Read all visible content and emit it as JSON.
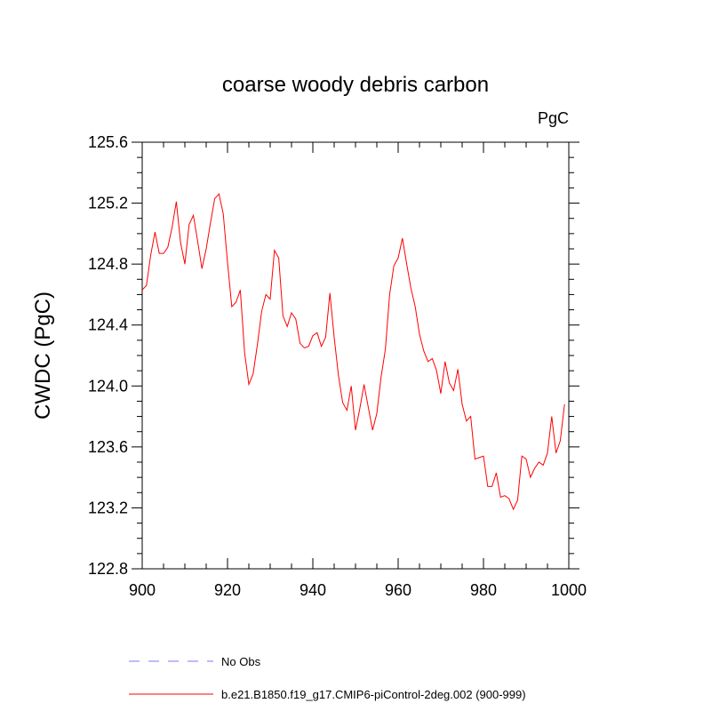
{
  "chart_data": {
    "type": "line",
    "title": "coarse woody debris carbon",
    "units": "PgC",
    "ylabel": "CWDC  (PgC)",
    "xlabel": "",
    "xlim": [
      900,
      1000
    ],
    "ylim": [
      122.8,
      125.6
    ],
    "x_ticks": [
      "900",
      "920",
      "940",
      "960",
      "980",
      "1000"
    ],
    "y_ticks": [
      "122.8",
      "123.2",
      "123.6",
      "124.0",
      "124.4",
      "124.8",
      "125.2",
      "125.6"
    ],
    "series": [
      {
        "name": "b.e21.B1850.f19_g17.CMIP6-piControl-2deg.002 (900-999)",
        "color": "#ff0000",
        "x": [
          900,
          901,
          902,
          903,
          904,
          905,
          906,
          907,
          908,
          909,
          910,
          911,
          912,
          913,
          914,
          915,
          916,
          917,
          918,
          919,
          920,
          921,
          922,
          923,
          924,
          925,
          926,
          927,
          928,
          929,
          930,
          931,
          932,
          933,
          934,
          935,
          936,
          937,
          938,
          939,
          940,
          941,
          942,
          943,
          944,
          945,
          946,
          947,
          948,
          949,
          950,
          951,
          952,
          953,
          954,
          955,
          956,
          957,
          958,
          959,
          960,
          961,
          962,
          963,
          964,
          965,
          966,
          967,
          968,
          969,
          970,
          971,
          972,
          973,
          974,
          975,
          976,
          977,
          978,
          979,
          980,
          981,
          982,
          983,
          984,
          985,
          986,
          987,
          988,
          989,
          990,
          991,
          992,
          993,
          994,
          995,
          996,
          997,
          998,
          999
        ],
        "values": [
          124.63,
          124.66,
          124.86,
          125.01,
          124.87,
          124.87,
          124.91,
          125.04,
          125.21,
          124.94,
          124.8,
          125.06,
          125.12,
          124.95,
          124.77,
          124.9,
          125.07,
          125.23,
          125.26,
          125.13,
          124.81,
          124.52,
          124.55,
          124.63,
          124.22,
          124.01,
          124.08,
          124.27,
          124.49,
          124.6,
          124.57,
          124.89,
          124.84,
          124.46,
          124.39,
          124.48,
          124.44,
          124.28,
          124.25,
          124.26,
          124.33,
          124.35,
          124.26,
          124.32,
          124.61,
          124.32,
          124.07,
          123.89,
          123.84,
          124.0,
          123.71,
          123.85,
          124.01,
          123.86,
          123.71,
          123.82,
          124.06,
          124.24,
          124.6,
          124.79,
          124.84,
          124.97,
          124.8,
          124.64,
          124.52,
          124.34,
          124.23,
          124.16,
          124.18,
          124.1,
          123.95,
          124.16,
          124.02,
          123.97,
          124.11,
          123.88,
          123.77,
          123.8,
          123.52,
          123.53,
          123.54,
          123.34,
          123.34,
          123.43,
          123.27,
          123.28,
          123.26,
          123.19,
          123.25,
          123.54,
          123.52,
          123.4,
          123.46,
          123.5,
          123.48,
          123.56,
          123.8,
          123.56,
          123.64,
          123.88
        ]
      },
      {
        "name": "No Obs",
        "color": "#7a7aff",
        "x": [],
        "values": []
      }
    ],
    "grid": false,
    "legend_placement": "bottom-left"
  }
}
